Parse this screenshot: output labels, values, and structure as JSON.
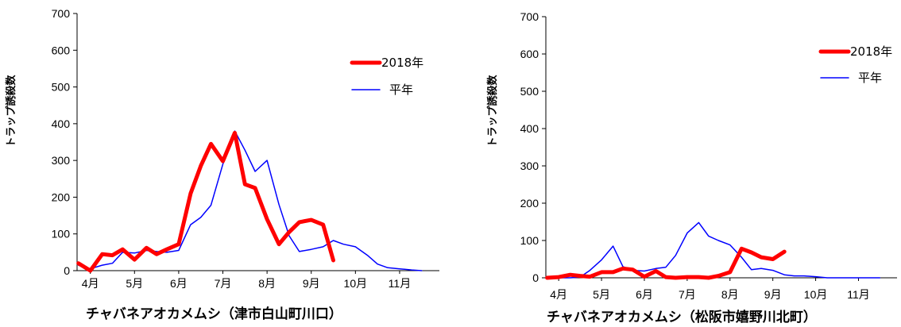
{
  "chart_data": [
    {
      "type": "line",
      "title": "チャバネアオカメムシ（津市白山町川口）",
      "ylabel": "トラップ誘殺数",
      "ylim": [
        0,
        700
      ],
      "yticks": [
        "0",
        "100",
        "200",
        "300",
        "400",
        "500",
        "600",
        "700"
      ],
      "xlim": [
        3.7,
        11.9
      ],
      "xticks": [
        "4月",
        "5月",
        "6月",
        "7月",
        "8月",
        "9月",
        "10月",
        "11月"
      ],
      "legend_position": "upper-right",
      "series": [
        {
          "name": "2018年",
          "color": "#ff0000",
          "width": 5,
          "x": [
            3.73,
            4.0,
            4.27,
            4.5,
            4.73,
            5.0,
            5.27,
            5.5,
            5.73,
            6.0,
            6.27,
            6.5,
            6.73,
            7.0,
            7.27,
            7.5,
            7.73,
            8.0,
            8.27,
            8.5,
            8.73,
            9.0,
            9.27,
            9.5,
            9.73
          ],
          "y": [
            20,
            0,
            45,
            42,
            58,
            30,
            62,
            45,
            58,
            72,
            210,
            285,
            345,
            298,
            375,
            235,
            225,
            140,
            72,
            105,
            132,
            138,
            125,
            28,
            null
          ]
        },
        {
          "name": "平年",
          "color": "#0000ff",
          "width": 1.5,
          "x": [
            3.73,
            4.0,
            4.27,
            4.5,
            4.73,
            5.0,
            5.27,
            5.5,
            5.73,
            6.0,
            6.27,
            6.5,
            6.73,
            7.0,
            7.27,
            7.5,
            7.73,
            8.0,
            8.27,
            8.5,
            8.73,
            9.0,
            9.27,
            9.5,
            9.73,
            10.0,
            10.27,
            10.5,
            10.73,
            11.0,
            11.27,
            11.5
          ],
          "y": [
            15,
            5,
            15,
            20,
            50,
            48,
            55,
            52,
            50,
            55,
            125,
            145,
            178,
            290,
            380,
            328,
            270,
            300,
            180,
            95,
            52,
            58,
            65,
            82,
            72,
            65,
            42,
            18,
            8,
            5,
            2,
            0
          ]
        }
      ]
    },
    {
      "type": "line",
      "title": "チャバネアオカメムシ（松阪市嬉野川北町）",
      "ylabel": "トラップ誘殺数",
      "ylim": [
        0,
        700
      ],
      "yticks": [
        "0",
        "100",
        "200",
        "300",
        "400",
        "500",
        "600",
        "700"
      ],
      "xlim": [
        3.7,
        11.9
      ],
      "xticks": [
        "4月",
        "5月",
        "6月",
        "7月",
        "8月",
        "9月",
        "10月",
        "11月"
      ],
      "legend_position": "upper-right",
      "series": [
        {
          "name": "2018年",
          "color": "#ff0000",
          "width": 5,
          "x": [
            3.73,
            4.0,
            4.27,
            4.5,
            4.73,
            5.0,
            5.27,
            5.5,
            5.73,
            6.0,
            6.27,
            6.5,
            6.73,
            7.0,
            7.27,
            7.5,
            7.73,
            8.0,
            8.27,
            8.5,
            8.73,
            9.0,
            9.27
          ],
          "y": [
            0,
            2,
            8,
            5,
            3,
            15,
            15,
            25,
            22,
            3,
            18,
            2,
            0,
            2,
            2,
            0,
            5,
            15,
            78,
            68,
            55,
            50,
            70
          ]
        },
        {
          "name": "平年",
          "color": "#0000ff",
          "width": 1.5,
          "x": [
            3.73,
            4.0,
            4.27,
            4.5,
            4.73,
            5.0,
            5.27,
            5.5,
            5.73,
            6.0,
            6.27,
            6.5,
            6.73,
            7.0,
            7.27,
            7.5,
            7.73,
            8.0,
            8.27,
            8.5,
            8.73,
            9.0,
            9.27,
            9.5,
            9.73,
            10.0,
            10.27,
            10.5,
            10.73,
            11.0,
            11.27,
            11.5
          ],
          "y": [
            0,
            0,
            0,
            2,
            20,
            48,
            85,
            30,
            20,
            18,
            25,
            28,
            60,
            120,
            148,
            112,
            100,
            88,
            55,
            22,
            25,
            20,
            8,
            5,
            5,
            3,
            0,
            0,
            0,
            0,
            0,
            0
          ]
        }
      ]
    }
  ]
}
